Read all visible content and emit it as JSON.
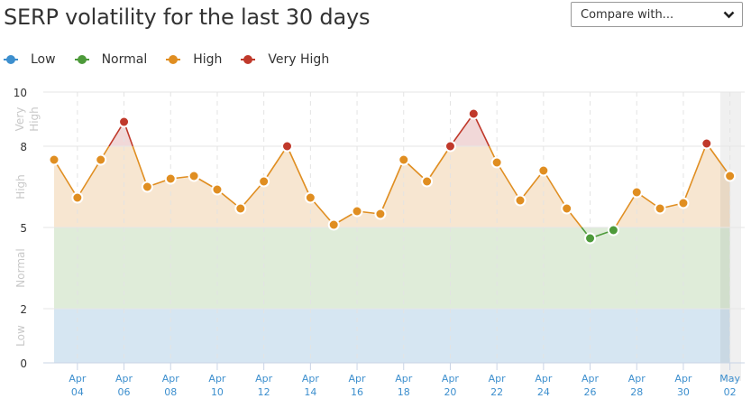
{
  "header": {
    "title": "SERP volatility for the last 30 days",
    "compare_dropdown": {
      "selected": "Compare with...",
      "icon": "chevron-down-icon"
    }
  },
  "legend": [
    {
      "label": "Low",
      "color": "#3d8fce"
    },
    {
      "label": "Normal",
      "color": "#4d9a3a"
    },
    {
      "label": "High",
      "color": "#e08e21"
    },
    {
      "label": "Very High",
      "color": "#c0392b"
    }
  ],
  "chart_data": {
    "type": "line",
    "title": "SERP volatility for the last 30 days",
    "xlabel": "",
    "ylabel": "",
    "ylim": [
      0,
      10
    ],
    "grid": true,
    "legend_position": "top-left",
    "y_ticks": [
      0,
      2,
      5,
      8,
      10
    ],
    "bands": [
      {
        "name": "Low",
        "from": 0,
        "to": 2,
        "fill": "#d6e6f2"
      },
      {
        "name": "Normal",
        "from": 2,
        "to": 5,
        "fill": "#dfecd9"
      },
      {
        "name": "High",
        "from": 5,
        "to": 8,
        "fill": "#f7e6d1"
      },
      {
        "name": "Very High",
        "from": 8,
        "to": 10,
        "fill": "#f1d8d8"
      }
    ],
    "x_tick_labels": [
      [
        "Apr",
        "04"
      ],
      [
        "Apr",
        "06"
      ],
      [
        "Apr",
        "08"
      ],
      [
        "Apr",
        "10"
      ],
      [
        "Apr",
        "12"
      ],
      [
        "Apr",
        "14"
      ],
      [
        "Apr",
        "16"
      ],
      [
        "Apr",
        "18"
      ],
      [
        "Apr",
        "20"
      ],
      [
        "Apr",
        "22"
      ],
      [
        "Apr",
        "24"
      ],
      [
        "Apr",
        "26"
      ],
      [
        "Apr",
        "28"
      ],
      [
        "Apr",
        "30"
      ],
      [
        "May",
        "02"
      ]
    ],
    "x": [
      "Apr 03",
      "Apr 04",
      "Apr 05",
      "Apr 06",
      "Apr 07",
      "Apr 08",
      "Apr 09",
      "Apr 10",
      "Apr 11",
      "Apr 12",
      "Apr 13",
      "Apr 14",
      "Apr 15",
      "Apr 16",
      "Apr 17",
      "Apr 18",
      "Apr 19",
      "Apr 20",
      "Apr 21",
      "Apr 22",
      "Apr 23",
      "Apr 24",
      "Apr 25",
      "Apr 26",
      "Apr 27",
      "Apr 28",
      "Apr 29",
      "Apr 30",
      "May 01",
      "May 02"
    ],
    "series": [
      {
        "name": "SERP volatility",
        "values": [
          7.5,
          6.1,
          7.5,
          8.9,
          6.5,
          6.8,
          6.9,
          6.4,
          5.7,
          6.7,
          8.0,
          6.1,
          5.1,
          5.6,
          5.5,
          7.5,
          6.7,
          8.0,
          9.2,
          7.4,
          6.0,
          7.1,
          5.7,
          4.6,
          4.9,
          6.3,
          5.7,
          5.9,
          8.1,
          6.9
        ]
      }
    ],
    "highlighted_range": {
      "from": "May 02",
      "note": "grey shaded current-day column"
    }
  }
}
